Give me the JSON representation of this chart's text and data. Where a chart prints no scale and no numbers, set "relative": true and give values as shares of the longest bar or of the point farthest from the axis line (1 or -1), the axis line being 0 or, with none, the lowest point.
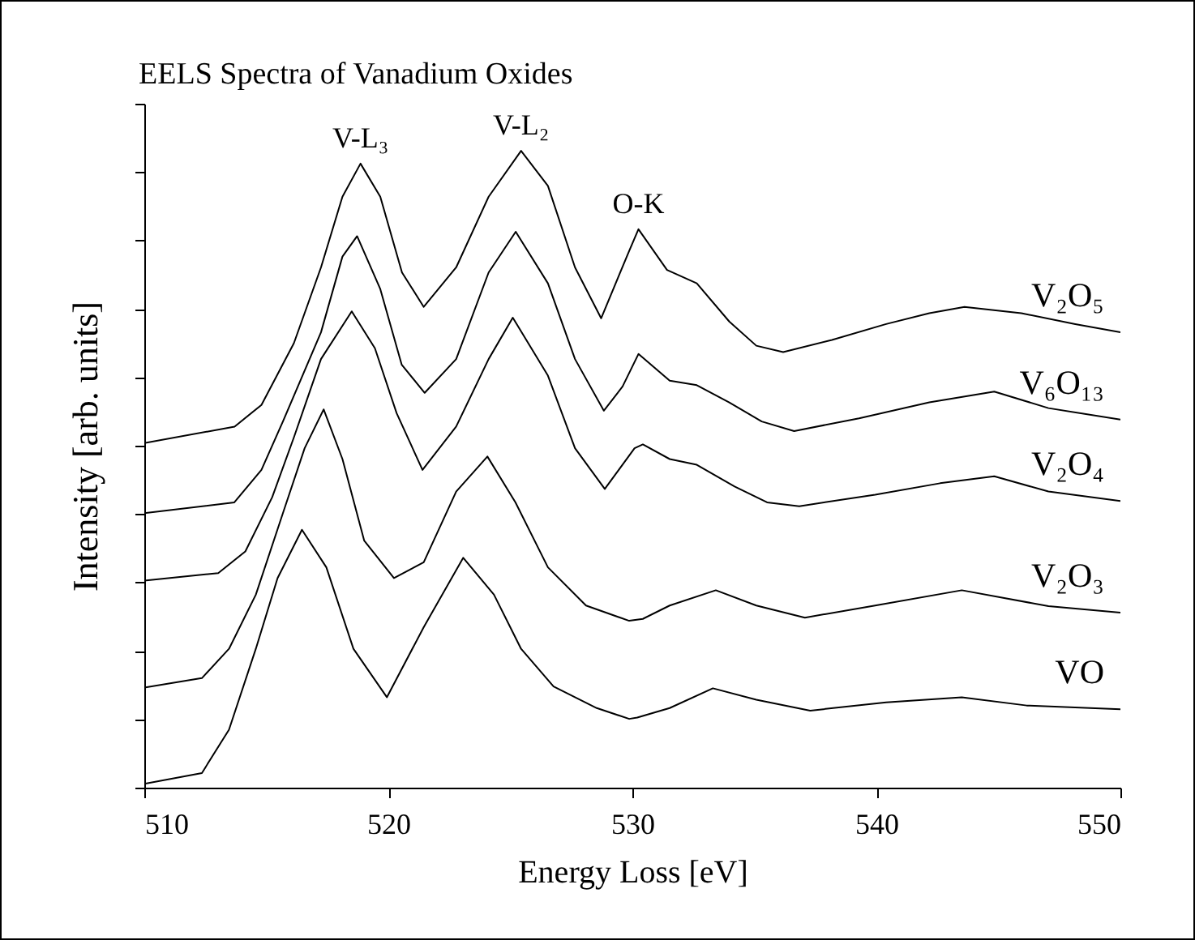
{
  "chart_data": {
    "type": "line",
    "relative": true,
    "title": "EELS Spectra of Vanadium Oxides",
    "xlabel": "Energy Loss [eV]",
    "ylabel": "Intensity [arb. units]",
    "xlim": [
      510,
      550
    ],
    "xticks": [
      510,
      520,
      530,
      540,
      550
    ],
    "marker": "none",
    "line_style": "solid",
    "annotations": [
      {
        "text": "V-L₃",
        "x": 518.86,
        "y": 0.98
      },
      {
        "text": "V-L₂",
        "x": 525.44,
        "y": 1.0
      },
      {
        "text": "O-K",
        "x": 530.25,
        "y": 0.877
      }
    ],
    "series": [
      {
        "name": "V₂O₅",
        "color": "#000000",
        "x": [
          510,
          513.7,
          514.8,
          516.13,
          517.24,
          518.12,
          518.86,
          519.67,
          520.56,
          521.45,
          522.78,
          524.11,
          525.44,
          526.54,
          527.65,
          528.72,
          529.87,
          530.25,
          531.42,
          532.64,
          533.97,
          535.08,
          536.18,
          538.18,
          540.4,
          542.17,
          543.61,
          545.94,
          548.15,
          550
        ],
        "values": [
          0.541,
          0.567,
          0.601,
          0.698,
          0.817,
          0.928,
          0.98,
          0.928,
          0.809,
          0.755,
          0.817,
          0.928,
          1.0,
          0.945,
          0.817,
          0.737,
          0.843,
          0.877,
          0.813,
          0.792,
          0.732,
          0.694,
          0.684,
          0.703,
          0.728,
          0.745,
          0.755,
          0.745,
          0.728,
          0.715
        ]
      },
      {
        "name": "V₆O₁₃",
        "color": "#000000",
        "x": [
          510,
          513.69,
          514.8,
          515.68,
          517.24,
          518.12,
          518.72,
          519.67,
          520.55,
          521.49,
          522.78,
          524.11,
          525.22,
          526.54,
          527.65,
          528.83,
          529.6,
          530.25,
          531.53,
          532.64,
          533.97,
          535.3,
          536.63,
          539.29,
          542.17,
          544.83,
          547.05,
          550
        ],
        "values": [
          0.431,
          0.448,
          0.499,
          0.575,
          0.715,
          0.834,
          0.866,
          0.783,
          0.664,
          0.62,
          0.673,
          0.809,
          0.873,
          0.792,
          0.673,
          0.592,
          0.63,
          0.681,
          0.639,
          0.632,
          0.605,
          0.575,
          0.56,
          0.58,
          0.605,
          0.622,
          0.596,
          0.578
        ]
      },
      {
        "name": "V₂O₄",
        "color": "#000000",
        "x": [
          510,
          513.03,
          514.14,
          515.24,
          516.13,
          517.24,
          518.5,
          519.45,
          520.34,
          521.4,
          522.78,
          524.11,
          525.1,
          526.54,
          527.65,
          528.87,
          530.09,
          530.43,
          531.53,
          532.64,
          534.19,
          535.52,
          536.84,
          539.95,
          542.61,
          544.83,
          547.05,
          550
        ],
        "values": [
          0.325,
          0.337,
          0.371,
          0.456,
          0.55,
          0.673,
          0.748,
          0.69,
          0.588,
          0.499,
          0.567,
          0.673,
          0.738,
          0.647,
          0.533,
          0.469,
          0.533,
          0.539,
          0.516,
          0.507,
          0.473,
          0.448,
          0.442,
          0.46,
          0.478,
          0.489,
          0.465,
          0.45
        ]
      },
      {
        "name": "V₂O₃",
        "color": "#000000",
        "x": [
          510,
          512.36,
          513.47,
          514.57,
          515.68,
          516.57,
          517.35,
          518.12,
          519.01,
          520.23,
          521.45,
          522.78,
          524.06,
          525.21,
          526.54,
          528.1,
          529.87,
          530.43,
          531.53,
          533.42,
          535.08,
          537.07,
          539.95,
          543.5,
          547.05,
          550
        ],
        "values": [
          0.157,
          0.172,
          0.218,
          0.303,
          0.431,
          0.533,
          0.594,
          0.516,
          0.388,
          0.329,
          0.354,
          0.465,
          0.52,
          0.448,
          0.346,
          0.286,
          0.262,
          0.265,
          0.286,
          0.31,
          0.286,
          0.267,
          0.286,
          0.31,
          0.285,
          0.275
        ]
      },
      {
        "name": "VO",
        "color": "#000000",
        "x": [
          510,
          512.36,
          513.47,
          514.57,
          515.46,
          516.46,
          517.46,
          518.57,
          519.94,
          521.45,
          523.07,
          524.33,
          525.44,
          526.77,
          528.54,
          529.87,
          530.2,
          531.53,
          533.3,
          535.08,
          537.29,
          540.4,
          543.5,
          546.16,
          550
        ],
        "values": [
          0.006,
          0.023,
          0.091,
          0.218,
          0.329,
          0.405,
          0.346,
          0.218,
          0.142,
          0.252,
          0.361,
          0.303,
          0.218,
          0.159,
          0.125,
          0.108,
          0.11,
          0.125,
          0.156,
          0.138,
          0.121,
          0.134,
          0.142,
          0.129,
          0.123
        ]
      }
    ]
  }
}
